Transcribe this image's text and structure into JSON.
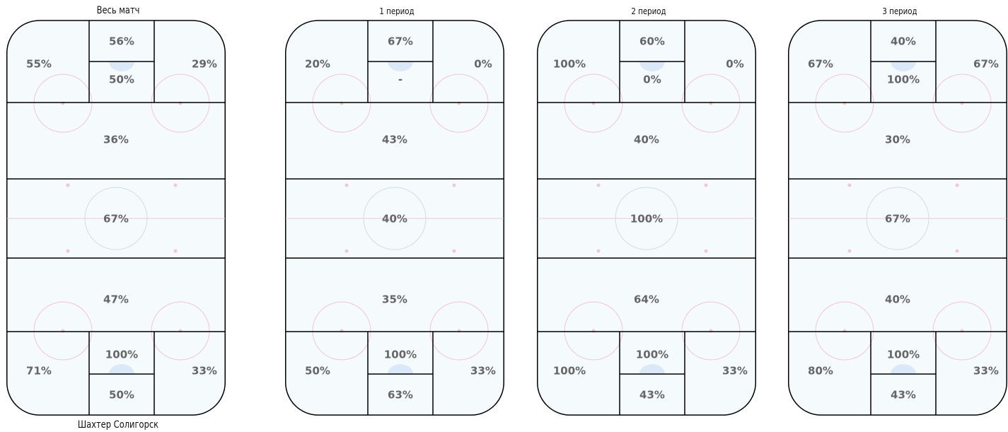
{
  "team": "Шахтер Солигорск",
  "colors": {
    "ice": "#f5fafd",
    "line": "#000000",
    "faceoff": "#f2c7cf",
    "center": "#cfdcec",
    "crease": "#dbe8f7"
  },
  "panels": [
    {
      "title": "Весь матч",
      "zones": {
        "top_left": "55%",
        "top_center_upper": "56%",
        "top_center_lower": "50%",
        "top_right": "29%",
        "upper_mid": "36%",
        "center": "67%",
        "lower_mid": "47%",
        "bottom_left": "71%",
        "bottom_center_upper": "100%",
        "bottom_center_lower": "50%",
        "bottom_right": "33%"
      }
    },
    {
      "title": "1 период",
      "zones": {
        "top_left": "20%",
        "top_center_upper": "67%",
        "top_center_lower": "-",
        "top_right": "0%",
        "upper_mid": "43%",
        "center": "40%",
        "lower_mid": "35%",
        "bottom_left": "50%",
        "bottom_center_upper": "100%",
        "bottom_center_lower": "63%",
        "bottom_right": "33%"
      }
    },
    {
      "title": "2 период",
      "zones": {
        "top_left": "100%",
        "top_center_upper": "60%",
        "top_center_lower": "0%",
        "top_right": "0%",
        "upper_mid": "40%",
        "center": "100%",
        "lower_mid": "64%",
        "bottom_left": "100%",
        "bottom_center_upper": "100%",
        "bottom_center_lower": "43%",
        "bottom_right": "33%"
      }
    },
    {
      "title": "3 период",
      "zones": {
        "top_left": "67%",
        "top_center_upper": "40%",
        "top_center_lower": "100%",
        "top_right": "67%",
        "upper_mid": "30%",
        "center": "67%",
        "lower_mid": "40%",
        "bottom_left": "80%",
        "bottom_center_upper": "100%",
        "bottom_center_lower": "43%",
        "bottom_right": "33%"
      }
    }
  ]
}
